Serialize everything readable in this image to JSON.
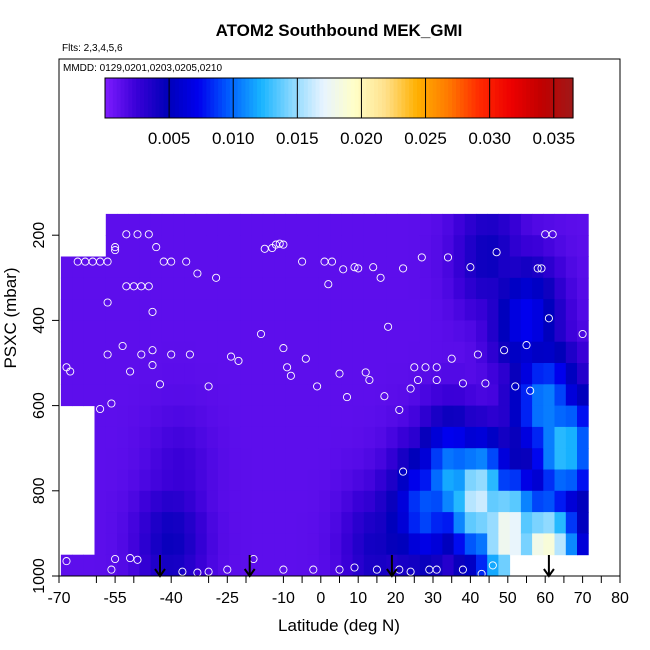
{
  "header": {
    "title": "ATOM2 Southbound MEK_GMI",
    "flights_note": "Flts: 2,3,4,5,6",
    "dates_note": "MMDD: 0129,0201,0203,0205,0210"
  },
  "colorbar": {
    "colors": [
      "#7f1cff",
      "#3a00d8",
      "#0000b8",
      "#0000ee",
      "#0060ff",
      "#18b4ff",
      "#8ad8ff",
      "#e8f4ff",
      "#ffffc8",
      "#ffe08a",
      "#ffb000",
      "#ff7a00",
      "#ff2a00",
      "#ee0000",
      "#c00000",
      "#a01818"
    ],
    "ticks": [
      "0.005",
      "0.010",
      "0.015",
      "0.020",
      "0.025",
      "0.030",
      "0.035"
    ],
    "tick_values": [
      0.005,
      0.01,
      0.015,
      0.02,
      0.025,
      0.03,
      0.035
    ],
    "range": [
      0,
      0.0365
    ]
  },
  "chart_data": {
    "type": "heatmap",
    "title": "ATOM2 Southbound MEK_GMI",
    "xlabel": "Latitude (deg N)",
    "ylabel": "PSXC (mbar)",
    "xlim": [
      -70,
      80
    ],
    "ylim": [
      1000,
      0
    ],
    "xticks": [
      -70,
      -60,
      -55,
      -50,
      -40,
      -30,
      -25,
      -20,
      -10,
      -5,
      0,
      5,
      10,
      15,
      20,
      25,
      30,
      35,
      40,
      45,
      50,
      55,
      60,
      65,
      70,
      75,
      80
    ],
    "xtick_labels": [
      "-70",
      "-55",
      "-40",
      "-25",
      "-10",
      "0",
      "10",
      "20",
      "30",
      "40",
      "50",
      "60",
      "70",
      "80"
    ],
    "xtick_label_values": [
      -70,
      -55,
      -40,
      -25,
      -10,
      0,
      10,
      20,
      30,
      40,
      50,
      60,
      70,
      80
    ],
    "yticks": [
      200,
      400,
      600,
      800,
      1000
    ],
    "ytick_labels": [
      "200",
      "400",
      "600",
      "800",
      "1000"
    ],
    "lat_bins": [
      -68,
      -65,
      -62,
      -59,
      -56,
      -53,
      -50,
      -47,
      -44,
      -41,
      -38,
      -35,
      -32,
      -29,
      -26,
      -23,
      -20,
      -17,
      -14,
      -11,
      -8,
      -5,
      -2,
      1,
      4,
      7,
      10,
      13,
      16,
      19,
      22,
      25,
      28,
      31,
      34,
      37,
      40,
      43,
      46,
      49,
      52,
      55,
      58,
      61,
      64,
      67,
      70,
      73
    ],
    "pressure_bins": [
      175,
      225,
      275,
      325,
      375,
      425,
      475,
      525,
      575,
      625,
      675,
      725,
      775,
      825,
      875,
      925,
      975
    ],
    "field_estimate": {
      "background": 0.0012,
      "features": [
        {
          "lat": -40,
          "p": 920,
          "value": 0.0045
        },
        {
          "lat": -38,
          "p": 760,
          "value": 0.0025
        },
        {
          "lat": 15,
          "p": 930,
          "value": 0.0042
        },
        {
          "lat": 22,
          "p": 880,
          "value": 0.0055
        },
        {
          "lat": 28,
          "p": 840,
          "value": 0.0095
        },
        {
          "lat": 35,
          "p": 780,
          "value": 0.012
        },
        {
          "lat": 42,
          "p": 820,
          "value": 0.0165
        },
        {
          "lat": 50,
          "p": 900,
          "value": 0.0185
        },
        {
          "lat": 60,
          "p": 950,
          "value": 0.0195
        },
        {
          "lat": 65,
          "p": 700,
          "value": 0.013
        },
        {
          "lat": 55,
          "p": 400,
          "value": 0.0075
        },
        {
          "lat": 45,
          "p": 250,
          "value": 0.0045
        },
        {
          "lat": 60,
          "p": 600,
          "value": 0.011
        }
      ]
    },
    "arrows_lat": [
      -43,
      -19,
      19,
      61
    ],
    "observations": [
      {
        "lat": -66,
        "p": 240
      },
      {
        "lat": -65,
        "p": 262
      },
      {
        "lat": -63,
        "p": 262
      },
      {
        "lat": -61,
        "p": 262
      },
      {
        "lat": -59,
        "p": 262
      },
      {
        "lat": -57,
        "p": 262
      },
      {
        "lat": -55,
        "p": 235
      },
      {
        "lat": -55,
        "p": 228
      },
      {
        "lat": -52,
        "p": 320
      },
      {
        "lat": -50,
        "p": 320
      },
      {
        "lat": -48,
        "p": 320
      },
      {
        "lat": -46,
        "p": 320
      },
      {
        "lat": -52,
        "p": 198
      },
      {
        "lat": -49,
        "p": 198
      },
      {
        "lat": -46,
        "p": 198
      },
      {
        "lat": -44,
        "p": 228
      },
      {
        "lat": -42,
        "p": 262
      },
      {
        "lat": -40,
        "p": 262
      },
      {
        "lat": -45,
        "p": 380
      },
      {
        "lat": -57,
        "p": 358
      },
      {
        "lat": -57,
        "p": 480
      },
      {
        "lat": -53,
        "p": 460
      },
      {
        "lat": -51,
        "p": 520
      },
      {
        "lat": -48,
        "p": 480
      },
      {
        "lat": -45,
        "p": 470
      },
      {
        "lat": -45,
        "p": 505
      },
      {
        "lat": -40,
        "p": 480
      },
      {
        "lat": -36,
        "p": 262
      },
      {
        "lat": -33,
        "p": 290
      },
      {
        "lat": -28,
        "p": 300
      },
      {
        "lat": -43,
        "p": 550
      },
      {
        "lat": -35,
        "p": 480
      },
      {
        "lat": -30,
        "p": 555
      },
      {
        "lat": -24,
        "p": 485
      },
      {
        "lat": -22,
        "p": 495
      },
      {
        "lat": -16,
        "p": 432
      },
      {
        "lat": -15,
        "p": 232
      },
      {
        "lat": -13,
        "p": 230
      },
      {
        "lat": -12,
        "p": 222
      },
      {
        "lat": -11,
        "p": 220
      },
      {
        "lat": -10,
        "p": 222
      },
      {
        "lat": -10,
        "p": 465
      },
      {
        "lat": -9,
        "p": 510
      },
      {
        "lat": -8,
        "p": 530
      },
      {
        "lat": -5,
        "p": 262
      },
      {
        "lat": -4,
        "p": 490
      },
      {
        "lat": -1,
        "p": 555
      },
      {
        "lat": 1,
        "p": 262
      },
      {
        "lat": 3,
        "p": 262
      },
      {
        "lat": 2,
        "p": 315
      },
      {
        "lat": 5,
        "p": 525
      },
      {
        "lat": 7,
        "p": 580
      },
      {
        "lat": 6,
        "p": 280
      },
      {
        "lat": 9,
        "p": 275
      },
      {
        "lat": 10,
        "p": 278
      },
      {
        "lat": 12,
        "p": 522
      },
      {
        "lat": 13,
        "p": 540
      },
      {
        "lat": 14,
        "p": 275
      },
      {
        "lat": 16,
        "p": 300
      },
      {
        "lat": 17,
        "p": 578
      },
      {
        "lat": 18,
        "p": 415
      },
      {
        "lat": 22,
        "p": 278
      },
      {
        "lat": 24,
        "p": 560
      },
      {
        "lat": 25,
        "p": 510
      },
      {
        "lat": 26,
        "p": 540
      },
      {
        "lat": 27,
        "p": 252
      },
      {
        "lat": 28,
        "p": 510
      },
      {
        "lat": 31,
        "p": 510
      },
      {
        "lat": 31,
        "p": 540
      },
      {
        "lat": 34,
        "p": 252
      },
      {
        "lat": 35,
        "p": 490
      },
      {
        "lat": 38,
        "p": 548
      },
      {
        "lat": 40,
        "p": 275
      },
      {
        "lat": 42,
        "p": 480
      },
      {
        "lat": 44,
        "p": 548
      },
      {
        "lat": 47,
        "p": 240
      },
      {
        "lat": 49,
        "p": 470
      },
      {
        "lat": 52,
        "p": 555
      },
      {
        "lat": 55,
        "p": 458
      },
      {
        "lat": 56,
        "p": 565
      },
      {
        "lat": 58,
        "p": 278
      },
      {
        "lat": 59,
        "p": 278
      },
      {
        "lat": 60,
        "p": 198
      },
      {
        "lat": 62,
        "p": 198
      },
      {
        "lat": 61,
        "p": 395
      },
      {
        "lat": 70,
        "p": 432
      },
      {
        "lat": 21,
        "p": 610
      },
      {
        "lat": 22,
        "p": 755
      },
      {
        "lat": -68,
        "p": 510
      },
      {
        "lat": -67,
        "p": 520
      },
      {
        "lat": -59,
        "p": 608
      },
      {
        "lat": -56,
        "p": 595
      },
      {
        "lat": -68,
        "p": 965
      },
      {
        "lat": -56,
        "p": 985
      },
      {
        "lat": -55,
        "p": 960
      },
      {
        "lat": -51,
        "p": 958
      },
      {
        "lat": -49,
        "p": 962
      },
      {
        "lat": -37,
        "p": 990
      },
      {
        "lat": -33,
        "p": 992
      },
      {
        "lat": -30,
        "p": 990
      },
      {
        "lat": -25,
        "p": 985
      },
      {
        "lat": -18,
        "p": 960
      },
      {
        "lat": -10,
        "p": 985
      },
      {
        "lat": -2,
        "p": 985
      },
      {
        "lat": 5,
        "p": 985
      },
      {
        "lat": 9,
        "p": 980
      },
      {
        "lat": 15,
        "p": 985
      },
      {
        "lat": 21,
        "p": 985
      },
      {
        "lat": 24,
        "p": 990
      },
      {
        "lat": 29,
        "p": 985
      },
      {
        "lat": 31,
        "p": 985
      },
      {
        "lat": 38,
        "p": 985
      },
      {
        "lat": 43,
        "p": 995
      },
      {
        "lat": 46,
        "p": 975
      }
    ]
  }
}
